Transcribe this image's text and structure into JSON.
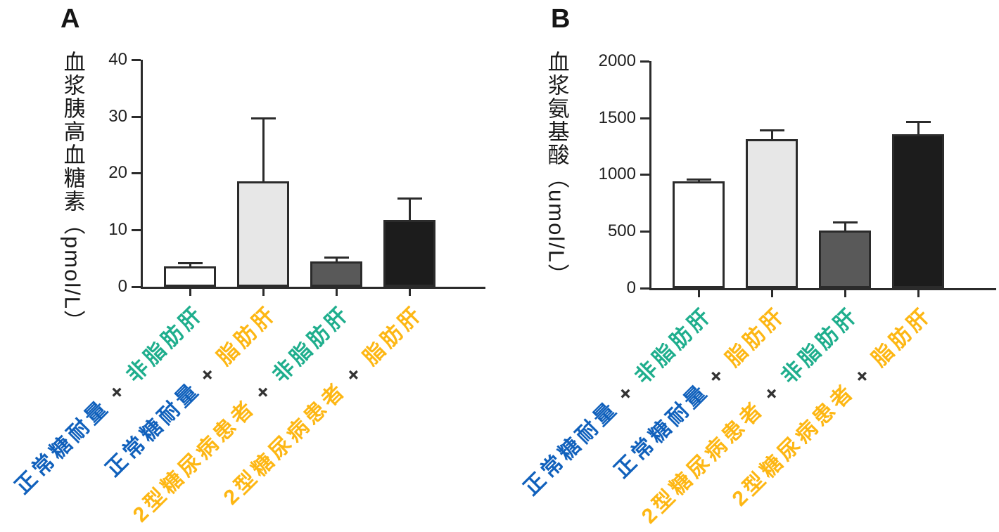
{
  "figure": {
    "background": "#FFFFFF",
    "palette": {
      "normal_glucose_blue": "#1161BC",
      "diabetes_yellow": "#FDB714",
      "non_fatty_liver_teal": "#1FAE8D",
      "fatty_liver_yellow": "#FDB714",
      "plus_dark": "#333333",
      "axis_dark": "#2B2B2B"
    }
  },
  "chart_data": [
    {
      "type": "bar",
      "panel_label": "A",
      "title": "",
      "ylabel": "血浆胰高血糖素（pmol/L）",
      "ylabel_unit": "pmol/L",
      "ylim": [
        0,
        40
      ],
      "yticks": [
        40,
        30,
        20,
        10,
        0
      ],
      "grid": false,
      "legend": "none",
      "categories": [
        "正常糖耐量 + 非脂肪肝",
        "正常糖耐量 + 脂肪肝",
        "2型糖尿病患者 + 非脂肪肝",
        "2型糖尿病患者 + 脂肪肝"
      ],
      "category_segments": [
        [
          {
            "text": "正常糖耐量",
            "color": "#1161BC"
          },
          {
            "text": " + ",
            "color": "#333333"
          },
          {
            "text": "非脂肪肝",
            "color": "#1FAE8D"
          }
        ],
        [
          {
            "text": "正常糖耐量",
            "color": "#1161BC"
          },
          {
            "text": " + ",
            "color": "#333333"
          },
          {
            "text": "脂肪肝",
            "color": "#FDB714"
          }
        ],
        [
          {
            "text": "2型糖尿病患者",
            "color": "#FDB714"
          },
          {
            "text": " + ",
            "color": "#333333"
          },
          {
            "text": "非脂肪肝",
            "color": "#1FAE8D"
          }
        ],
        [
          {
            "text": "2型糖尿病患者",
            "color": "#FDB714"
          },
          {
            "text": " + ",
            "color": "#333333"
          },
          {
            "text": "脂肪肝",
            "color": "#FDB714"
          }
        ]
      ],
      "values": [
        3.6,
        18.6,
        4.5,
        11.8
      ],
      "error_upper": [
        4.3,
        29.8,
        5.3,
        15.7
      ],
      "bar_fills": [
        "#FFFFFF",
        "#E7E7E7",
        "#595959",
        "#1C1C1C"
      ],
      "bar_border": "#2B2B2B"
    },
    {
      "type": "bar",
      "panel_label": "B",
      "title": "",
      "ylabel": "血浆氨基酸（umol/L）",
      "ylabel_unit": "umol/L",
      "ylim": [
        0,
        2000
      ],
      "yticks": [
        2000,
        1500,
        1000,
        500,
        0
      ],
      "grid": false,
      "legend": "none",
      "categories": [
        "正常糖耐量 + 非脂肪肝",
        "正常糖耐量 + 脂肪肝",
        "2型糖尿病患者 + 非脂肪肝",
        "2型糖尿病患者 + 脂肪肝"
      ],
      "category_segments": [
        [
          {
            "text": "正常糖耐量",
            "color": "#1161BC"
          },
          {
            "text": " + ",
            "color": "#333333"
          },
          {
            "text": "非脂肪肝",
            "color": "#1FAE8D"
          }
        ],
        [
          {
            "text": "正常糖耐量",
            "color": "#1161BC"
          },
          {
            "text": " + ",
            "color": "#333333"
          },
          {
            "text": "脂肪肝",
            "color": "#FDB714"
          }
        ],
        [
          {
            "text": "2型糖尿病患者",
            "color": "#FDB714"
          },
          {
            "text": " + ",
            "color": "#333333"
          },
          {
            "text": "非脂肪肝",
            "color": "#1FAE8D"
          }
        ],
        [
          {
            "text": "2型糖尿病患者",
            "color": "#FDB714"
          },
          {
            "text": " + ",
            "color": "#333333"
          },
          {
            "text": "脂肪肝",
            "color": "#FDB714"
          }
        ]
      ],
      "values": [
        940,
        1310,
        510,
        1355
      ],
      "error_upper": [
        965,
        1400,
        590,
        1475
      ],
      "bar_fills": [
        "#FFFFFF",
        "#E7E7E7",
        "#595959",
        "#1C1C1C"
      ],
      "bar_border": "#2B2B2B"
    }
  ]
}
